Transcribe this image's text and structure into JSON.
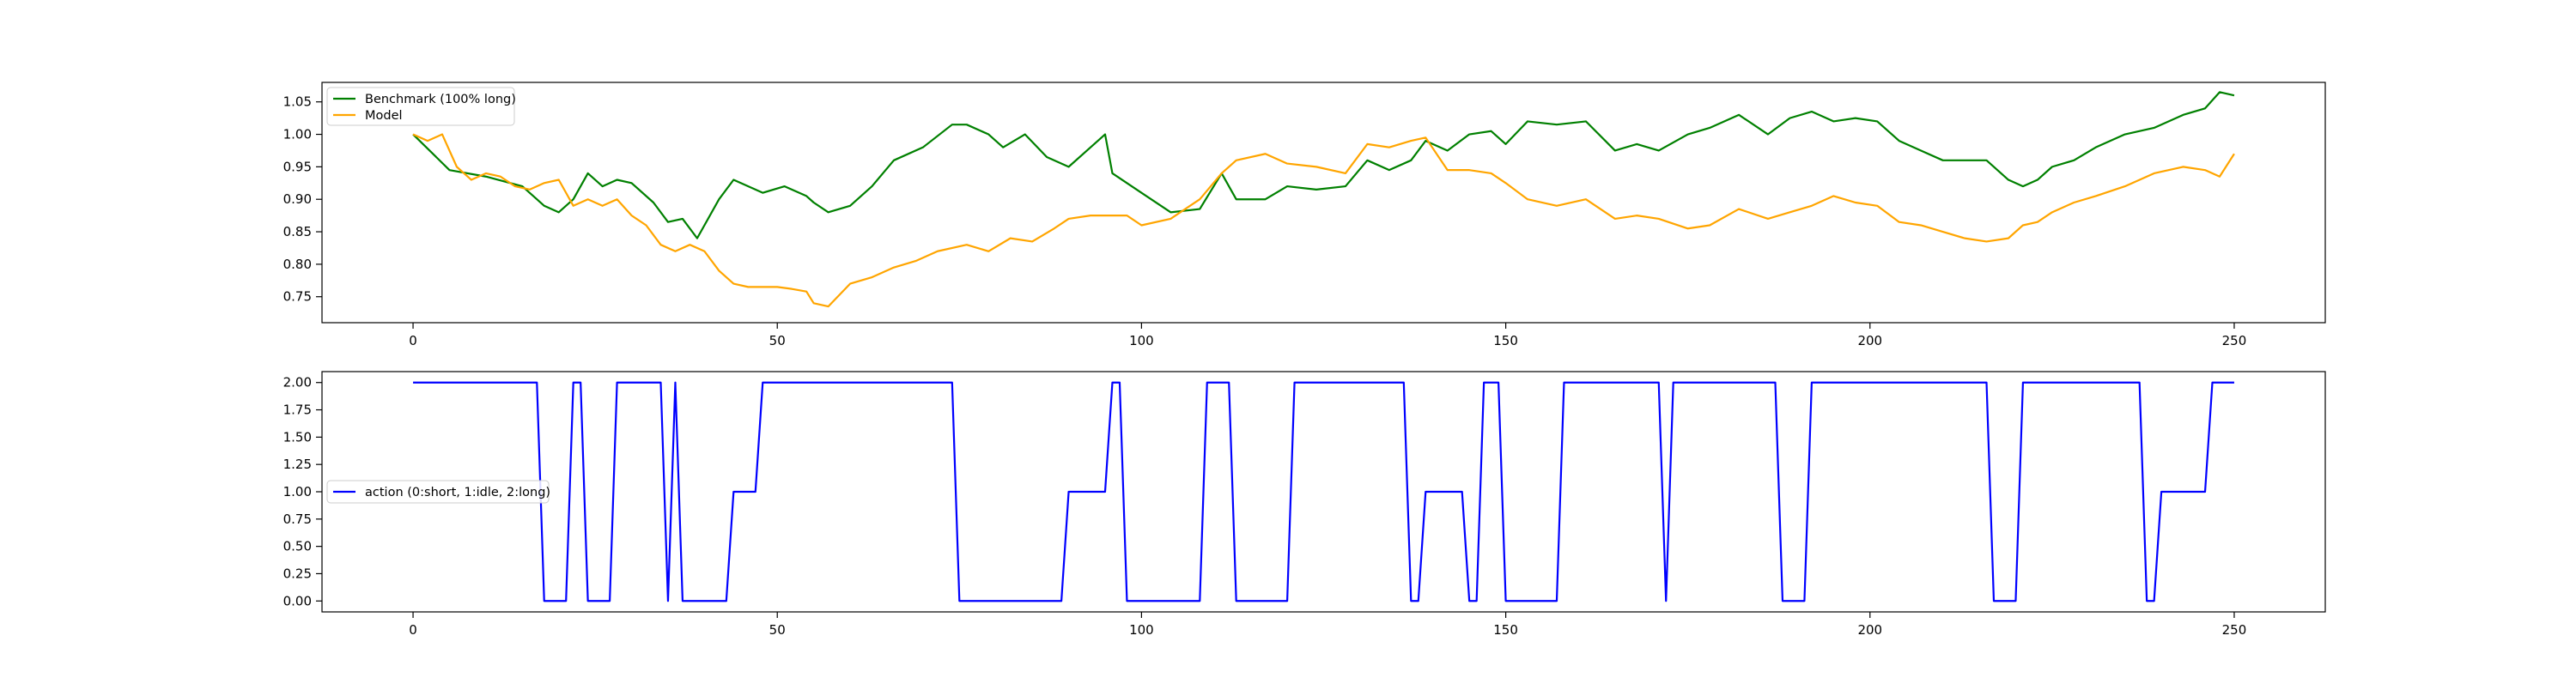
{
  "chart_data": [
    {
      "type": "line",
      "xlim": [
        -12.5,
        262.5
      ],
      "ylim": [
        0.71,
        1.08
      ],
      "xticks": [
        0,
        50,
        100,
        150,
        200,
        250
      ],
      "yticks": [
        0.75,
        0.8,
        0.85,
        0.9,
        0.95,
        1.0,
        1.05
      ],
      "xtick_labels": [
        "0",
        "50",
        "100",
        "150",
        "200",
        "250"
      ],
      "ytick_labels": [
        "0.75",
        "0.80",
        "0.85",
        "0.90",
        "0.95",
        "1.00",
        "1.05"
      ],
      "grid": false,
      "legend_position": "upper left",
      "series": [
        {
          "name": "Benchmark (100% long)",
          "color": "#008000",
          "x": [
            0,
            5,
            10,
            15,
            17,
            18,
            20,
            22,
            24,
            26,
            28,
            30,
            33,
            35,
            37,
            39,
            42,
            44,
            48,
            51,
            54,
            55,
            57,
            60,
            63,
            66,
            70,
            74,
            76,
            79,
            81,
            84,
            87,
            90,
            93,
            95,
            96,
            98,
            100,
            104,
            108,
            111,
            113,
            117,
            120,
            124,
            128,
            131,
            134,
            137,
            139,
            142,
            145,
            148,
            150,
            153,
            157,
            161,
            165,
            168,
            171,
            175,
            178,
            182,
            186,
            189,
            192,
            195,
            198,
            201,
            204,
            207,
            210,
            213,
            216,
            219,
            221,
            223,
            225,
            228,
            231,
            235,
            239,
            243,
            246,
            248,
            250
          ],
          "y": [
            1.0,
            0.945,
            0.935,
            0.92,
            0.9,
            0.89,
            0.88,
            0.9,
            0.94,
            0.92,
            0.93,
            0.925,
            0.895,
            0.865,
            0.87,
            0.84,
            0.9,
            0.93,
            0.91,
            0.92,
            0.905,
            0.895,
            0.88,
            0.89,
            0.92,
            0.96,
            0.98,
            1.015,
            1.015,
            1.0,
            0.98,
            1.0,
            0.965,
            0.95,
            0.98,
            1.0,
            0.94,
            0.925,
            0.91,
            0.88,
            0.885,
            0.94,
            0.9,
            0.9,
            0.92,
            0.915,
            0.92,
            0.96,
            0.945,
            0.96,
            0.99,
            0.975,
            1.0,
            1.005,
            0.985,
            1.02,
            1.015,
            1.02,
            0.975,
            0.985,
            0.975,
            1.0,
            1.01,
            1.03,
            1.0,
            1.025,
            1.035,
            1.02,
            1.025,
            1.02,
            0.99,
            0.975,
            0.96,
            0.96,
            0.96,
            0.93,
            0.92,
            0.93,
            0.95,
            0.96,
            0.98,
            1.0,
            1.01,
            1.03,
            1.04,
            1.065,
            1.06
          ]
        },
        {
          "name": "Model",
          "color": "#FFA500",
          "x": [
            0,
            2,
            4,
            6,
            8,
            10,
            12,
            14,
            16,
            18,
            20,
            22,
            24,
            26,
            28,
            30,
            32,
            34,
            36,
            38,
            40,
            42,
            44,
            46,
            48,
            50,
            52,
            54,
            55,
            57,
            60,
            63,
            66,
            69,
            72,
            76,
            79,
            82,
            85,
            88,
            90,
            93,
            96,
            98,
            100,
            104,
            108,
            111,
            113,
            117,
            120,
            124,
            128,
            131,
            134,
            137,
            139,
            142,
            145,
            148,
            150,
            153,
            157,
            161,
            165,
            168,
            171,
            175,
            178,
            182,
            186,
            189,
            192,
            195,
            198,
            201,
            204,
            207,
            210,
            213,
            216,
            219,
            221,
            223,
            225,
            228,
            231,
            235,
            239,
            243,
            246,
            248,
            250
          ],
          "y": [
            1.0,
            0.99,
            1.0,
            0.95,
            0.93,
            0.94,
            0.935,
            0.92,
            0.915,
            0.925,
            0.93,
            0.89,
            0.9,
            0.89,
            0.9,
            0.875,
            0.86,
            0.83,
            0.82,
            0.83,
            0.82,
            0.79,
            0.77,
            0.765,
            0.765,
            0.765,
            0.762,
            0.758,
            0.74,
            0.735,
            0.77,
            0.78,
            0.795,
            0.805,
            0.82,
            0.83,
            0.82,
            0.84,
            0.835,
            0.855,
            0.87,
            0.875,
            0.875,
            0.875,
            0.86,
            0.87,
            0.9,
            0.94,
            0.96,
            0.97,
            0.955,
            0.95,
            0.94,
            0.985,
            0.98,
            0.99,
            0.995,
            0.945,
            0.945,
            0.94,
            0.925,
            0.9,
            0.89,
            0.9,
            0.87,
            0.875,
            0.87,
            0.855,
            0.86,
            0.885,
            0.87,
            0.88,
            0.89,
            0.905,
            0.895,
            0.89,
            0.865,
            0.86,
            0.85,
            0.84,
            0.835,
            0.84,
            0.86,
            0.865,
            0.88,
            0.895,
            0.905,
            0.92,
            0.94,
            0.95,
            0.945,
            0.935,
            0.97
          ]
        }
      ]
    },
    {
      "type": "line",
      "xlim": [
        -12.5,
        262.5
      ],
      "ylim": [
        -0.1,
        2.1
      ],
      "xticks": [
        0,
        50,
        100,
        150,
        200,
        250
      ],
      "yticks": [
        0.0,
        0.25,
        0.5,
        0.75,
        1.0,
        1.25,
        1.5,
        1.75,
        2.0
      ],
      "xtick_labels": [
        "0",
        "50",
        "100",
        "150",
        "200",
        "250"
      ],
      "ytick_labels": [
        "0.00",
        "0.25",
        "0.50",
        "0.75",
        "1.00",
        "1.25",
        "1.50",
        "1.75",
        "2.00"
      ],
      "grid": false,
      "legend_position": "center left",
      "series": [
        {
          "name": "action (0:short, 1:idle, 2:long)",
          "color": "#0000FF",
          "x": [
            0,
            17,
            18,
            21,
            22,
            23,
            24,
            27,
            28,
            34,
            35,
            36,
            37,
            43,
            44,
            47,
            48,
            74,
            75,
            89,
            90,
            95,
            96,
            97,
            98,
            108,
            109,
            112,
            113,
            120,
            121,
            136,
            137,
            138,
            139,
            144,
            145,
            146,
            147,
            149,
            150,
            157,
            158,
            171,
            172,
            173,
            174,
            187,
            188,
            191,
            192,
            216,
            217,
            220,
            221,
            237,
            238,
            239,
            240,
            246,
            247,
            250
          ],
          "y": [
            2,
            2,
            0,
            0,
            2,
            2,
            0,
            0,
            2,
            2,
            0,
            2,
            0,
            0,
            1,
            1,
            2,
            2,
            0,
            0,
            1,
            1,
            2,
            2,
            0,
            0,
            2,
            2,
            0,
            0,
            2,
            2,
            0,
            0,
            1,
            1,
            0,
            0,
            2,
            2,
            0,
            0,
            2,
            2,
            0,
            2,
            2,
            2,
            0,
            0,
            2,
            2,
            0,
            0,
            2,
            2,
            0,
            0,
            1,
            1,
            2,
            2
          ]
        }
      ]
    }
  ]
}
